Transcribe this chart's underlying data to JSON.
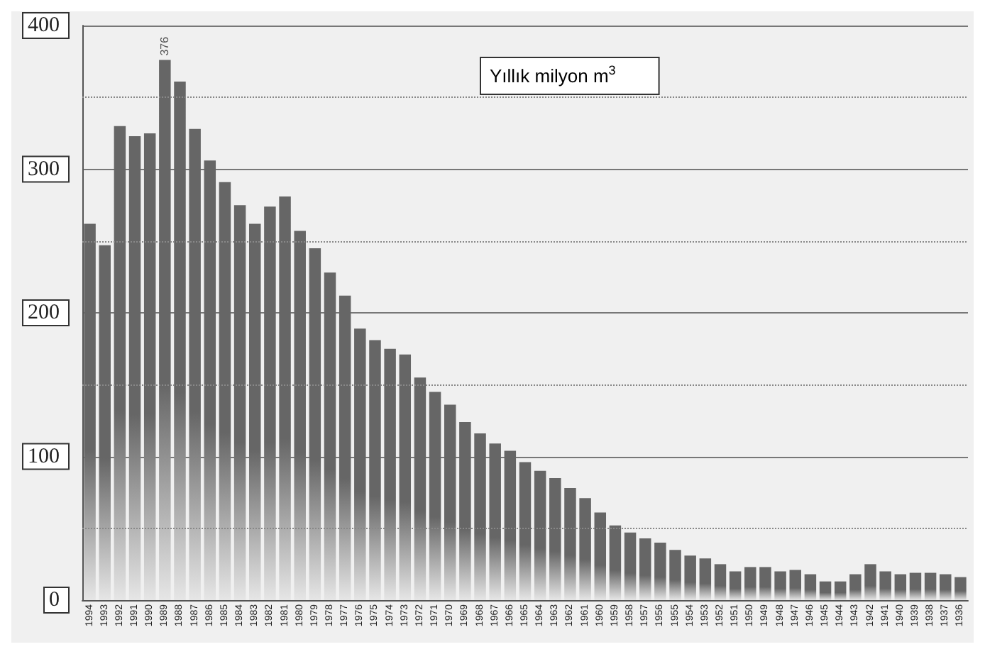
{
  "chart_data": {
    "type": "bar",
    "categories": [
      "1994",
      "1993",
      "1992",
      "1991",
      "1990",
      "1989",
      "1988",
      "1987",
      "1986",
      "1985",
      "1984",
      "1983",
      "1982",
      "1981",
      "1980",
      "1979",
      "1978",
      "1977",
      "1976",
      "1975",
      "1974",
      "1973",
      "1972",
      "1971",
      "1970",
      "1969",
      "1968",
      "1967",
      "1966",
      "1965",
      "1964",
      "1963",
      "1962",
      "1961",
      "1960",
      "1959",
      "1958",
      "1957",
      "1956",
      "1955",
      "1954",
      "1953",
      "1952",
      "1951",
      "1950",
      "1949",
      "1948",
      "1947",
      "1946",
      "1945",
      "1944",
      "1943",
      "1942",
      "1941",
      "1940",
      "1939",
      "1938",
      "1937",
      "1936"
    ],
    "values": [
      262,
      247,
      330,
      323,
      325,
      376,
      361,
      328,
      306,
      291,
      275,
      262,
      274,
      281,
      257,
      245,
      228,
      212,
      189,
      181,
      175,
      171,
      155,
      145,
      136,
      124,
      116,
      109,
      104,
      96,
      90,
      85,
      78,
      71,
      61,
      52,
      47,
      43,
      40,
      35,
      31,
      29,
      25,
      20,
      23,
      23,
      20,
      21,
      18,
      13,
      13,
      18,
      25,
      20,
      18,
      19,
      19,
      18,
      16
    ],
    "value_labels": [
      null,
      null,
      null,
      null,
      null,
      "376",
      null,
      null,
      null,
      null,
      null,
      null,
      null,
      null,
      null,
      null,
      null,
      null,
      null,
      null,
      null,
      null,
      null,
      null,
      null,
      null,
      null,
      null,
      null,
      null,
      null,
      null,
      null,
      null,
      null,
      null,
      null,
      null,
      null,
      null,
      null,
      null,
      null,
      null,
      null,
      null,
      null,
      null,
      null,
      null,
      null,
      null,
      null,
      null,
      null,
      null,
      null,
      null,
      null
    ],
    "color": "#666666",
    "ylim": [
      0,
      400
    ],
    "yticks": [
      0,
      {
        "value": 50,
        "label": null
      },
      100,
      {
        "value": 150,
        "label": null
      },
      200,
      {
        "value": 250,
        "label": null
      },
      300,
      {
        "value": 350,
        "label": null
      },
      400
    ],
    "grid": "y",
    "annotations": [
      "Yıllık milyon m$^{3}$"
    ]
  }
}
